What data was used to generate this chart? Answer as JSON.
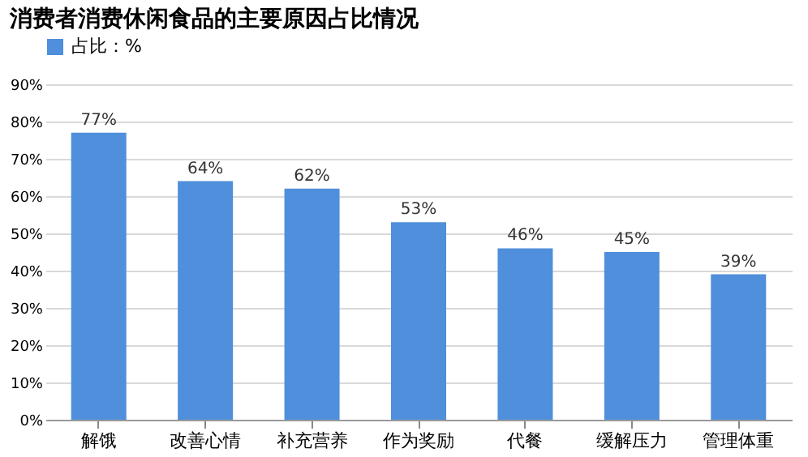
{
  "chart_data": {
    "type": "bar",
    "title": "消费者消费休闲食品的主要原因占比情况",
    "categories": [
      "解饿",
      "改善心情",
      "补充营养",
      "作为奖励",
      "代餐",
      "缓解压力",
      "管理体重"
    ],
    "series": [
      {
        "name": "占比：%",
        "color": "#4f8fdb",
        "values": [
          77,
          64,
          62,
          53,
          46,
          45,
          39
        ],
        "value_labels": [
          "77%",
          "64%",
          "62%",
          "53%",
          "46%",
          "45%",
          "39%"
        ]
      }
    ],
    "ylim": [
      0,
      90
    ],
    "yticks": [
      {
        "value": 0,
        "label": "0%"
      },
      {
        "value": 10,
        "label": "10%"
      },
      {
        "value": 20,
        "label": "20%"
      },
      {
        "value": 30,
        "label": "30%"
      },
      {
        "value": 40,
        "label": "40%"
      },
      {
        "value": 50,
        "label": "50%"
      },
      {
        "value": 60,
        "label": "60%"
      },
      {
        "value": 70,
        "label": "70%"
      },
      {
        "value": 80,
        "label": "80%"
      },
      {
        "value": 90,
        "label": "90%"
      }
    ],
    "grid": "y",
    "legend": "top"
  }
}
